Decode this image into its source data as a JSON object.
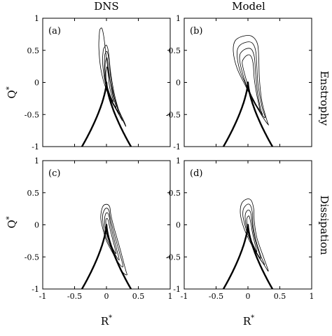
{
  "figure": {
    "column_titles": [
      "DNS",
      "Model"
    ],
    "row_labels": [
      "Enstrophy",
      "Dissipation"
    ],
    "xlabel": "R",
    "ylabel": "Q",
    "superscript": "*"
  },
  "chart_data": [
    {
      "type": "contour",
      "panel": "(a)",
      "column": "DNS",
      "row": "Enstrophy",
      "xlim": [
        -1,
        1
      ],
      "ylim": [
        -1,
        1
      ],
      "xticks": [
        "-1",
        "-0.5",
        "0",
        "0.5",
        "1"
      ],
      "yticks": [
        "1",
        "0.5",
        "0",
        "-0.5",
        "-1"
      ],
      "vieillefosse_tails": true,
      "contours": [
        {
          "points": [
            [
              -0.1,
              0.83
            ],
            [
              -0.07,
              0.84
            ],
            [
              -0.04,
              0.7
            ],
            [
              0.0,
              0.38
            ],
            [
              0.06,
              0.0
            ],
            [
              0.16,
              -0.35
            ],
            [
              0.28,
              -0.62
            ],
            [
              0.3,
              -0.68
            ],
            [
              0.22,
              -0.52
            ],
            [
              0.08,
              -0.28
            ],
            [
              -0.02,
              -0.06
            ],
            [
              -0.09,
              0.22
            ],
            [
              -0.12,
              0.55
            ],
            [
              -0.11,
              0.78
            ]
          ]
        },
        {
          "points": [
            [
              -0.03,
              0.55
            ],
            [
              0.0,
              0.58
            ],
            [
              0.03,
              0.48
            ],
            [
              0.07,
              0.12
            ],
            [
              0.14,
              -0.25
            ],
            [
              0.23,
              -0.55
            ],
            [
              0.24,
              -0.58
            ],
            [
              0.14,
              -0.4
            ],
            [
              0.04,
              -0.2
            ],
            [
              -0.02,
              0.0
            ],
            [
              -0.06,
              0.3
            ],
            [
              -0.05,
              0.5
            ]
          ]
        },
        {
          "points": [
            [
              -0.02,
              0.45
            ],
            [
              0.01,
              0.48
            ],
            [
              0.04,
              0.35
            ],
            [
              0.07,
              0.05
            ],
            [
              0.12,
              -0.22
            ],
            [
              0.19,
              -0.47
            ],
            [
              0.17,
              -0.45
            ],
            [
              0.07,
              -0.28
            ],
            [
              0.0,
              -0.1
            ],
            [
              -0.03,
              0.15
            ],
            [
              -0.03,
              0.38
            ]
          ]
        },
        {
          "points": [
            [
              -0.01,
              0.35
            ],
            [
              0.01,
              0.38
            ],
            [
              0.03,
              0.25
            ],
            [
              0.06,
              0.0
            ],
            [
              0.1,
              -0.2
            ],
            [
              0.15,
              -0.38
            ],
            [
              0.12,
              -0.35
            ],
            [
              0.05,
              -0.2
            ],
            [
              0.0,
              -0.05
            ],
            [
              -0.02,
              0.15
            ],
            [
              -0.02,
              0.3
            ]
          ]
        },
        {
          "points": [
            [
              0.0,
              0.2
            ],
            [
              0.01,
              0.24
            ],
            [
              0.03,
              0.1
            ],
            [
              0.05,
              -0.08
            ],
            [
              0.09,
              -0.22
            ],
            [
              0.11,
              -0.3
            ],
            [
              0.08,
              -0.25
            ],
            [
              0.03,
              -0.12
            ],
            [
              0.0,
              0.0
            ],
            [
              -0.01,
              0.15
            ]
          ]
        }
      ]
    },
    {
      "type": "contour",
      "panel": "(b)",
      "column": "Model",
      "row": "Enstrophy",
      "xlim": [
        -1,
        1
      ],
      "ylim": [
        -1,
        1
      ],
      "xticks": [
        "-1",
        "-0.5",
        "0",
        "0.5",
        "1"
      ],
      "yticks": [
        "1",
        "0.5",
        "0",
        "-0.5",
        "-1"
      ],
      "vieillefosse_tails": true,
      "contours": [
        {
          "points": [
            [
              -0.2,
              0.65
            ],
            [
              -0.08,
              0.72
            ],
            [
              0.06,
              0.72
            ],
            [
              0.15,
              0.6
            ],
            [
              0.17,
              0.35
            ],
            [
              0.18,
              0.05
            ],
            [
              0.22,
              -0.3
            ],
            [
              0.3,
              -0.6
            ],
            [
              0.32,
              -0.66
            ],
            [
              0.22,
              -0.52
            ],
            [
              0.08,
              -0.28
            ],
            [
              -0.04,
              -0.05
            ],
            [
              -0.17,
              0.22
            ],
            [
              -0.23,
              0.48
            ]
          ]
        },
        {
          "points": [
            [
              -0.15,
              0.55
            ],
            [
              -0.05,
              0.62
            ],
            [
              0.06,
              0.62
            ],
            [
              0.12,
              0.5
            ],
            [
              0.14,
              0.25
            ],
            [
              0.16,
              -0.05
            ],
            [
              0.22,
              -0.38
            ],
            [
              0.27,
              -0.55
            ],
            [
              0.18,
              -0.45
            ],
            [
              0.06,
              -0.25
            ],
            [
              -0.04,
              -0.02
            ],
            [
              -0.13,
              0.2
            ],
            [
              -0.17,
              0.42
            ]
          ]
        },
        {
          "points": [
            [
              -0.12,
              0.45
            ],
            [
              -0.04,
              0.52
            ],
            [
              0.05,
              0.52
            ],
            [
              0.1,
              0.4
            ],
            [
              0.12,
              0.15
            ],
            [
              0.15,
              -0.15
            ],
            [
              0.2,
              -0.42
            ],
            [
              0.23,
              -0.5
            ],
            [
              0.15,
              -0.38
            ],
            [
              0.04,
              -0.2
            ],
            [
              -0.04,
              0.0
            ],
            [
              -0.1,
              0.2
            ],
            [
              -0.13,
              0.35
            ]
          ]
        },
        {
          "points": [
            [
              -0.08,
              0.35
            ],
            [
              -0.02,
              0.42
            ],
            [
              0.04,
              0.42
            ],
            [
              0.08,
              0.3
            ],
            [
              0.1,
              0.05
            ],
            [
              0.14,
              -0.2
            ],
            [
              0.19,
              -0.45
            ],
            [
              0.12,
              -0.33
            ],
            [
              0.03,
              -0.15
            ],
            [
              -0.03,
              0.05
            ],
            [
              -0.07,
              0.2
            ],
            [
              -0.09,
              0.3
            ]
          ]
        }
      ]
    },
    {
      "type": "contour",
      "panel": "(c)",
      "column": "DNS",
      "row": "Dissipation",
      "xlim": [
        -1,
        1
      ],
      "ylim": [
        -1,
        1
      ],
      "xticks": [
        "-1",
        "-0.5",
        "0",
        "0.5",
        "1"
      ],
      "yticks": [
        "1",
        "0.5",
        "0",
        "-0.5",
        "-1"
      ],
      "vieillefosse_tails": true,
      "contours": [
        {
          "points": [
            [
              -0.06,
              0.28
            ],
            [
              0.0,
              0.32
            ],
            [
              0.05,
              0.28
            ],
            [
              0.07,
              0.15
            ],
            [
              0.12,
              -0.05
            ],
            [
              0.22,
              -0.4
            ],
            [
              0.3,
              -0.7
            ],
            [
              0.32,
              -0.78
            ],
            [
              0.24,
              -0.72
            ],
            [
              0.12,
              -0.48
            ],
            [
              0.0,
              -0.25
            ],
            [
              -0.06,
              -0.05
            ],
            [
              -0.09,
              0.12
            ]
          ]
        },
        {
          "points": [
            [
              -0.04,
              0.22
            ],
            [
              0.0,
              0.26
            ],
            [
              0.04,
              0.22
            ],
            [
              0.06,
              0.1
            ],
            [
              0.11,
              -0.1
            ],
            [
              0.2,
              -0.42
            ],
            [
              0.26,
              -0.65
            ],
            [
              0.18,
              -0.58
            ],
            [
              0.08,
              -0.38
            ],
            [
              -0.01,
              -0.18
            ],
            [
              -0.05,
              0.0
            ],
            [
              -0.06,
              0.14
            ]
          ]
        },
        {
          "points": [
            [
              -0.02,
              0.15
            ],
            [
              0.01,
              0.19
            ],
            [
              0.04,
              0.14
            ],
            [
              0.06,
              0.02
            ],
            [
              0.1,
              -0.15
            ],
            [
              0.17,
              -0.42
            ],
            [
              0.2,
              -0.55
            ],
            [
              0.13,
              -0.45
            ],
            [
              0.05,
              -0.28
            ],
            [
              -0.01,
              -0.1
            ],
            [
              -0.03,
              0.05
            ]
          ]
        },
        {
          "points": [
            [
              -0.01,
              0.07
            ],
            [
              0.01,
              0.1
            ],
            [
              0.03,
              0.06
            ],
            [
              0.05,
              -0.04
            ],
            [
              0.08,
              -0.16
            ],
            [
              0.13,
              -0.35
            ],
            [
              0.15,
              -0.45
            ],
            [
              0.09,
              -0.35
            ],
            [
              0.03,
              -0.18
            ],
            [
              0.0,
              -0.05
            ]
          ]
        }
      ]
    },
    {
      "type": "contour",
      "panel": "(d)",
      "column": "Model",
      "row": "Dissipation",
      "xlim": [
        -1,
        1
      ],
      "ylim": [
        -1,
        1
      ],
      "xticks": [
        "-1",
        "-0.5",
        "0",
        "0.5",
        "1"
      ],
      "yticks": [
        "1",
        "0.5",
        "0",
        "-0.5",
        "-1"
      ],
      "vieillefosse_tails": true,
      "contours": [
        {
          "points": [
            [
              -0.1,
              0.33
            ],
            [
              -0.02,
              0.4
            ],
            [
              0.05,
              0.38
            ],
            [
              0.09,
              0.25
            ],
            [
              0.1,
              0.05
            ],
            [
              0.14,
              -0.2
            ],
            [
              0.25,
              -0.52
            ],
            [
              0.32,
              -0.72
            ],
            [
              0.25,
              -0.62
            ],
            [
              0.12,
              -0.42
            ],
            [
              0.0,
              -0.2
            ],
            [
              -0.08,
              0.0
            ],
            [
              -0.12,
              0.18
            ]
          ]
        },
        {
          "points": [
            [
              -0.07,
              0.25
            ],
            [
              -0.01,
              0.32
            ],
            [
              0.04,
              0.3
            ],
            [
              0.07,
              0.18
            ],
            [
              0.08,
              0.0
            ],
            [
              0.12,
              -0.22
            ],
            [
              0.2,
              -0.48
            ],
            [
              0.26,
              -0.62
            ],
            [
              0.18,
              -0.52
            ],
            [
              0.08,
              -0.33
            ],
            [
              -0.01,
              -0.13
            ],
            [
              -0.06,
              0.05
            ],
            [
              -0.08,
              0.15
            ]
          ]
        },
        {
          "points": [
            [
              -0.04,
              0.17
            ],
            [
              0.0,
              0.23
            ],
            [
              0.04,
              0.2
            ],
            [
              0.06,
              0.08
            ],
            [
              0.08,
              -0.08
            ],
            [
              0.13,
              -0.3
            ],
            [
              0.2,
              -0.52
            ],
            [
              0.13,
              -0.42
            ],
            [
              0.05,
              -0.25
            ],
            [
              -0.01,
              -0.08
            ],
            [
              -0.04,
              0.06
            ]
          ]
        },
        {
          "points": [
            [
              -0.02,
              0.08
            ],
            [
              0.01,
              0.14
            ],
            [
              0.03,
              0.1
            ],
            [
              0.05,
              0.0
            ],
            [
              0.07,
              -0.12
            ],
            [
              0.11,
              -0.3
            ],
            [
              0.14,
              -0.42
            ],
            [
              0.09,
              -0.33
            ],
            [
              0.03,
              -0.18
            ],
            [
              0.0,
              -0.05
            ]
          ]
        }
      ]
    }
  ]
}
